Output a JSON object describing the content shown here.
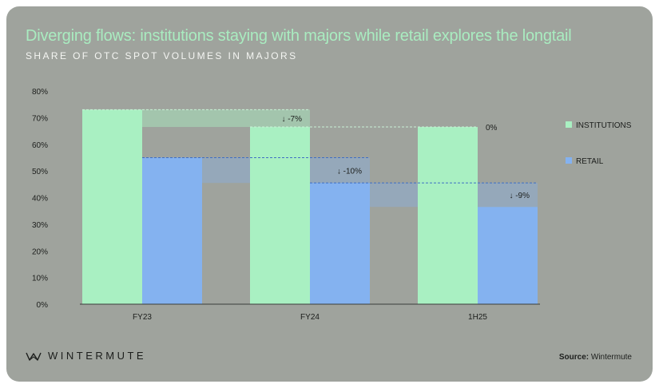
{
  "header": {
    "title": "Diverging flows: institutions staying with majors while retail explores the longtail",
    "subtitle": "SHARE OF OTC SPOT VOLUMES IN MAJORS"
  },
  "footer": {
    "brand": "WINTERMUTE",
    "source_label": "Source:",
    "source_value": "Wintermute"
  },
  "colors": {
    "institutions": "#a9f0c2",
    "retail": "#84b2f0",
    "background": "#9fa39d"
  },
  "icons": {
    "brand_logo": "wintermute-logo-icon"
  },
  "chart_data": {
    "type": "bar",
    "categories": [
      "FY23",
      "FY24",
      "1H25"
    ],
    "series": [
      {
        "name": "INSTITUTIONS",
        "values": [
          73,
          66.5,
          66.5
        ]
      },
      {
        "name": "RETAIL",
        "values": [
          55,
          45.5,
          36.5
        ]
      }
    ],
    "annotations": {
      "INSTITUTIONS": [
        "↓ -7%",
        "0%"
      ],
      "RETAIL": [
        "↓ -10%",
        "↓ -9%"
      ]
    },
    "yticks": [
      "0%",
      "10%",
      "20%",
      "30%",
      "40%",
      "50%",
      "60%",
      "70%",
      "80%"
    ],
    "ylim": [
      0,
      80
    ],
    "legend_position": "right",
    "grid": false
  }
}
